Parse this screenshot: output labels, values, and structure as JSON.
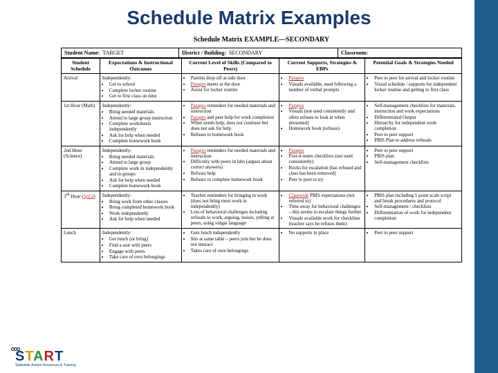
{
  "slide": {
    "title": "Schedule Matrix Examples"
  },
  "doc": {
    "title": "Schedule Matrix EXAMPLE—SECONDARY"
  },
  "meta": {
    "student_label": "Student Name:",
    "student_value": "TARGET",
    "district_label": "District / Building:",
    "district_value": "SECONDARY",
    "classroom_label": "Classroom:",
    "classroom_value": ""
  },
  "headers": {
    "c0": "Student Schedule",
    "c1": "Expectations & Instructional Outcomes",
    "c2": "Current Level of Skills (Compared to Peers)",
    "c3": "Current Supports, Strategies & EBPs",
    "c4": "Potential Goals & Strategies Needed"
  },
  "rows": [
    {
      "period": "Arrival",
      "exp_lead": "Independently:",
      "exp": [
        "Get to school",
        "Complete locker routine",
        "Get to first class on time"
      ],
      "skills": [
        "Parents drop off at side door",
        "Parapro meets at the door",
        "Assist for locker routine"
      ],
      "supports_lead": "Parapro",
      "supports": [
        "Visuals available, used following a number of verbal prompts"
      ],
      "goals": [
        "Peer to peer for arrival and locker routine",
        "Visual schedule / supports for independent locker routine and getting to first class"
      ]
    },
    {
      "period": "1st Hour (Math)",
      "exp_lead": "Independently:",
      "exp": [
        "Bring needed materials",
        "Attend to large group instruction",
        "Complete worksheets independently",
        "Ask for help when needed",
        "Complete homework book"
      ],
      "skills": [
        "Parapro reminders for needed materials and instruction",
        "Parapro and peer help for work completion",
        "When needs help, does not continue but does not ask for help",
        "Refuses to homework book"
      ],
      "supports_lead": "Parapro",
      "supports": [
        "Visuals (not used consistently and often refuses to look at when presented)",
        "Homework book (refuses)"
      ],
      "goals": [
        "Self-management checklists for materials, instruction and work expectations",
        "Differentiated Output",
        "Hierarchy for independent work completion",
        "Peer to peer support",
        "PBIS Plan to address refusals"
      ]
    },
    {
      "period": "2nd Hour (Science)",
      "exp_lead": "Independently:",
      "exp": [
        "Bring needed materials",
        "Attend to large group",
        "Complete work in independently and in groups",
        "Ask for help when needed",
        "Complete homework book"
      ],
      "skills": [
        "Parapro reminders for needed materials and instruction",
        "Difficulty with peers in labs (argues about correct answers)",
        "Refuses help",
        "Refuses to complete homework book"
      ],
      "supports_lead": "Parapro",
      "supports": [
        "Post-it-notes checklists (not used consistently)",
        "Rocks for escalation (has refused and class has been removed)",
        "Peer to peer to try"
      ],
      "goals": [
        "Peer to peer support",
        "PBIS plan",
        "Self-management checklists"
      ]
    },
    {
      "period_html": "3rd Hour (SpEd)",
      "exp_lead": "Independently:",
      "exp": [
        "Bring work from other classes",
        "Bring completed homework book",
        "Work independently",
        "Ask for help when needed"
      ],
      "skills": [
        "Teacher reminders for bringing in work (does not bring most work in independently)",
        "Lots of behavioral challenges including refusals to work, arguing, noises, yelling at peers, using vulgar language"
      ],
      "supports_lead": "",
      "supports": [
        "Classwide PBIS expectations (not referred to)",
        "Time away for behavioral challenges – this seems to escalate things further",
        "Visuals available work for checklists (teacher says he refuses them)"
      ],
      "goals": [
        "PBIS plan including 5 point scale script and break procedures and protocol",
        "Self-management / checklists",
        "Differentiation of work for independent completion"
      ]
    },
    {
      "period": "Lunch",
      "exp_lead": "Independently:",
      "exp": [
        "Get lunch (or bring)",
        "Find a seat with peers",
        "Engage with peers",
        "Take care of own belongings"
      ],
      "skills": [
        "Gets lunch independently",
        "Sits at same table – peers join but he does not interact",
        "Takes care of own belongings"
      ],
      "supports_lead": "",
      "supports": [
        "No supports in place"
      ],
      "goals": [
        "Peer to peer support"
      ]
    }
  ],
  "logo": {
    "tag": "Statewide Autism Resources & Training"
  },
  "colors": {
    "band": "#1f5d8f",
    "title": "#1b3a6b"
  }
}
